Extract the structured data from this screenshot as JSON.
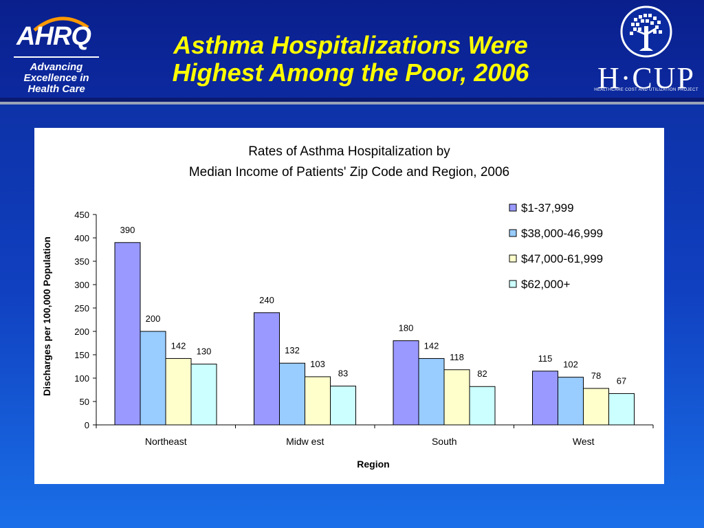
{
  "slide": {
    "title_line1": "Asthma Hospitalizations Were",
    "title_line2": "Highest Among the Poor, 2006",
    "title_color": "#ffff00"
  },
  "ahrq_logo": {
    "wordmark": "AHRQ",
    "tagline_line1": "Advancing",
    "tagline_line2": "Excellence in",
    "tagline_line3": "Health Care"
  },
  "hcup_logo": {
    "wordmark": "H·CUP",
    "subtitle": "HEALTHCARE COST AND UTILIZATION PROJECT"
  },
  "chart_data": {
    "type": "bar",
    "title_line1": "Rates of Asthma Hospitalization by",
    "title_line2": "Median Income of Patients' Zip Code and Region, 2006",
    "xlabel": "Region",
    "ylabel": "Discharges per 100,000 Population",
    "categories": [
      "Northeast",
      "Midw est",
      "South",
      "West"
    ],
    "ylim": [
      0,
      450
    ],
    "yticks": [
      0,
      50,
      100,
      150,
      200,
      250,
      300,
      350,
      400,
      450
    ],
    "legend_position": "top-right",
    "grid": false,
    "series": [
      {
        "name": "$1-37,999",
        "color": "#9999ff",
        "values": [
          390,
          240,
          180,
          115
        ]
      },
      {
        "name": "$38,000-46,999",
        "color": "#99ccff",
        "values": [
          200,
          132,
          142,
          102
        ]
      },
      {
        "name": "$47,000-61,999",
        "color": "#ffffcc",
        "values": [
          142,
          103,
          118,
          78
        ]
      },
      {
        "name": "$62,000+",
        "color": "#ccffff",
        "values": [
          130,
          83,
          82,
          67
        ]
      }
    ]
  }
}
